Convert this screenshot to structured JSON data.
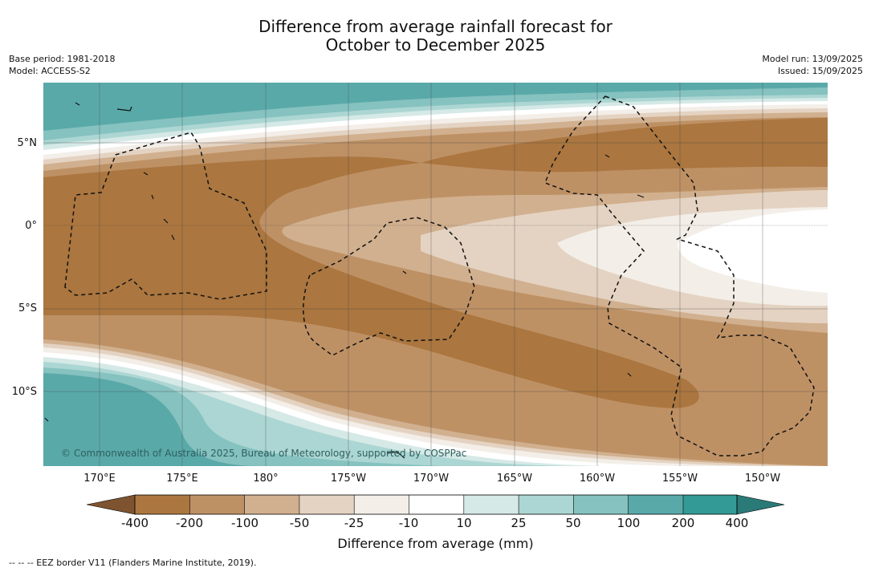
{
  "title": {
    "line1": "Difference from average rainfall forecast for",
    "line2": "October to December 2025"
  },
  "meta": {
    "base_period": "Base period: 1981-2018",
    "model": "Model: ACCESS-S2",
    "model_run": "Model run: 13/09/2025",
    "issued": "Issued: 15/09/2025"
  },
  "map": {
    "copyright": "© Commonwealth of Australia 2025, Bureau of Meteorology, supported by COSPPac",
    "lat_labels": [
      "5°N",
      "0°",
      "5°S",
      "10°S"
    ],
    "lon_labels": [
      "170°E",
      "175°E",
      "180°",
      "175°W",
      "170°W",
      "165°W",
      "160°W",
      "155°W",
      "150°W"
    ]
  },
  "colorbar": {
    "title": "Difference from average (mm)",
    "ticks": [
      "-400",
      "-200",
      "-100",
      "-50",
      "-25",
      "-10",
      "10",
      "25",
      "50",
      "100",
      "200",
      "400"
    ],
    "colors": {
      "lt_400_neg": "#7e5430",
      "neg400_200": "#ab763f",
      "neg200_100": "#be9165",
      "neg100_50": "#d1b08f",
      "neg50_25": "#e4d3c2",
      "neg25_10": "#f3eee8",
      "neg10_10": "#ffffff",
      "p10_25": "#d5e9e6",
      "p25_50": "#acd6d3",
      "p50_100": "#85c2c0",
      "p100_200": "#5aa9a9",
      "p200_400": "#349a96",
      "gt_400": "#2a7a78"
    }
  },
  "footnote": "-- -- -- EEZ border V11 (Flanders Marine Institute, 2019)."
}
